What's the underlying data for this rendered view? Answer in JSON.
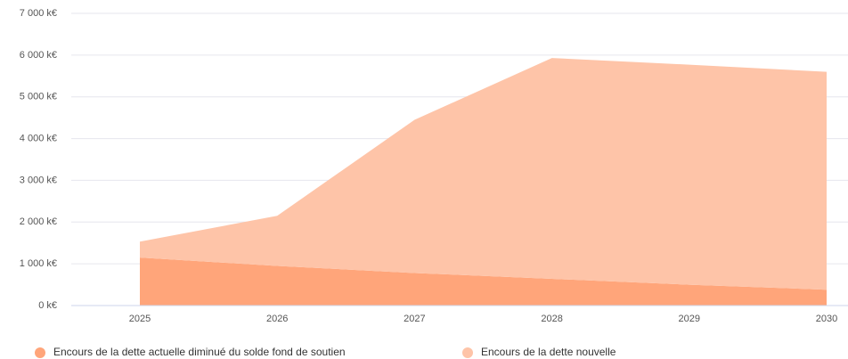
{
  "chart_data": {
    "type": "stacked_area",
    "categories": [
      "2025",
      "2026",
      "2027",
      "2028",
      "2029",
      "2030"
    ],
    "series": [
      {
        "name": "Encours de la dette actuelle diminué du solde fond de soutien",
        "color": "#ffa57a",
        "values": [
          1150,
          950,
          780,
          640,
          500,
          380
        ]
      },
      {
        "name": "Encours de la dette nouvelle",
        "color": "#fec4a8",
        "values": [
          380,
          1200,
          3670,
          5290,
          5270,
          5220
        ]
      }
    ],
    "ylim": [
      0,
      7000
    ],
    "yticks": [
      {
        "value": 0,
        "label": "0 k€"
      },
      {
        "value": 1000,
        "label": "1 000 k€"
      },
      {
        "value": 2000,
        "label": "2 000 k€"
      },
      {
        "value": 3000,
        "label": "3 000 k€"
      },
      {
        "value": 4000,
        "label": "4 000 k€"
      },
      {
        "value": 5000,
        "label": "5 000 k€"
      },
      {
        "value": 6000,
        "label": "6 000 k€"
      },
      {
        "value": 7000,
        "label": "7 000 k€"
      }
    ],
    "grid": true
  }
}
